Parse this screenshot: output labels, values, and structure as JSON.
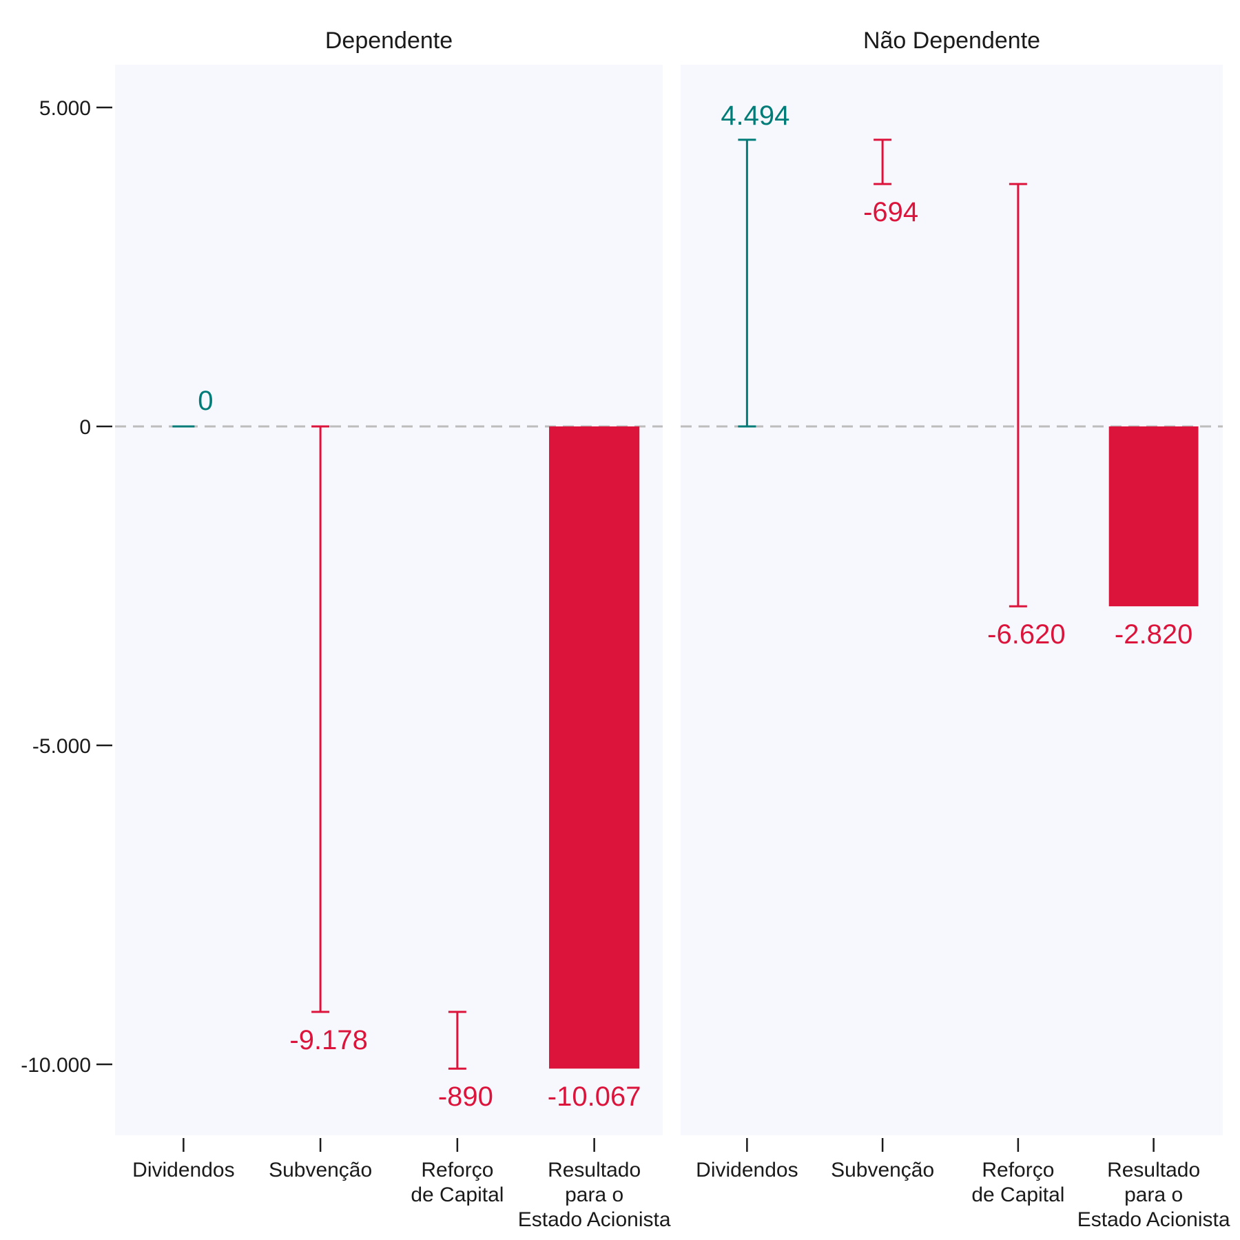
{
  "colors": {
    "positive": "#007c78",
    "negative": "#dc143c",
    "panel_background": "#f7f8fd",
    "zero_line": "#bdbdbd"
  },
  "chart_data": {
    "type": "waterfall",
    "categories": [
      "Dividendos",
      "Subvenção",
      "Reforço\nde Capital",
      "Resultado\npara o\nEstado Acionista"
    ],
    "ylim": [
      -11100,
      5700
    ],
    "yticks": [
      5000,
      0,
      -5000,
      -10000
    ],
    "ytick_labels": [
      "5.000",
      "0",
      "-5.000",
      "-10.000"
    ],
    "zero_line": "dashed",
    "legend": "none",
    "panels": [
      {
        "title": "Dependente",
        "steps": [
          {
            "category": "Dividendos",
            "start": 0,
            "end": 0,
            "value": 0,
            "label": "0",
            "kind": "positive"
          },
          {
            "category": "Subvenção",
            "start": 0,
            "end": -9178,
            "value": -9178,
            "label": "-9.178",
            "kind": "negative"
          },
          {
            "category": "Reforço de Capital",
            "start": -9178,
            "end": -10067,
            "value": -890,
            "label": "-890",
            "kind": "negative"
          },
          {
            "category": "Resultado para o Estado Acionista",
            "total": -10067,
            "value": -10067,
            "label": "-10.067",
            "kind": "total"
          }
        ]
      },
      {
        "title": "Não Dependente",
        "steps": [
          {
            "category": "Dividendos",
            "start": 0,
            "end": 4494,
            "value": 4494,
            "label": "4.494",
            "kind": "positive"
          },
          {
            "category": "Subvenção",
            "start": 4494,
            "end": 3800,
            "value": -694,
            "label": "-694",
            "kind": "negative"
          },
          {
            "category": "Reforço de Capital",
            "start": 3800,
            "end": -2820,
            "value": -6620,
            "label": "-6.620",
            "kind": "negative"
          },
          {
            "category": "Resultado para o Estado Acionista",
            "total": -2820,
            "value": -2820,
            "label": "-2.820",
            "kind": "total"
          }
        ]
      }
    ]
  }
}
